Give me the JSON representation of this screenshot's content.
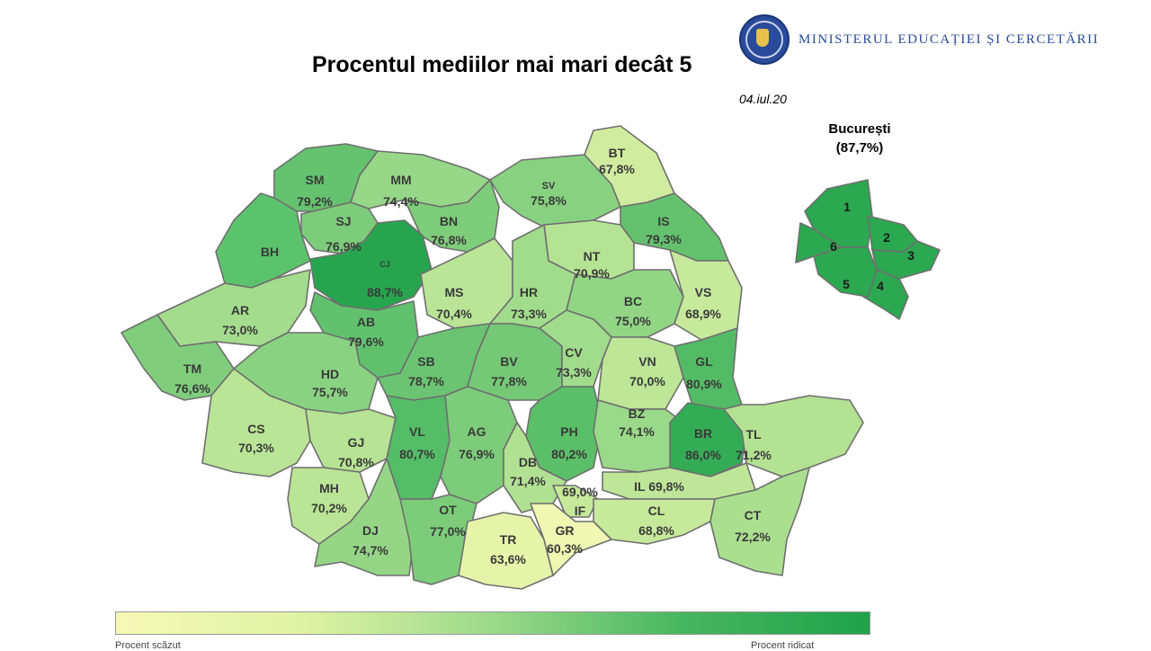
{
  "header": {
    "title": "Procentul mediilor mai mari decât 5",
    "date": "04.iul.20",
    "ministry": "Ministerul Educației și Cercetării",
    "seal_name": "ministry-seal-logo"
  },
  "bucuresti": {
    "name": "București",
    "value_label": "(87,7%)",
    "value": 87.7,
    "sectors": [
      "1",
      "2",
      "3",
      "4",
      "5",
      "6"
    ]
  },
  "legend": {
    "colors": [
      "#f5f9b7",
      "#1fa24a"
    ],
    "left_text": "Procent scăzut",
    "right_text": "Procent ridicat"
  },
  "counties": [
    {
      "code": "SM",
      "value": "79,2%"
    },
    {
      "code": "MM",
      "value": "74,4%"
    },
    {
      "code": "SV",
      "value": "75,8%"
    },
    {
      "code": "BT",
      "value": "67,8%"
    },
    {
      "code": "SJ",
      "value": "76,9%"
    },
    {
      "code": "BN",
      "value": "76,8%"
    },
    {
      "code": "IS",
      "value": "79,3%"
    },
    {
      "code": "BH",
      "value": ""
    },
    {
      "code": "CJ",
      "value": "88,7%"
    },
    {
      "code": "NT",
      "value": "70,9%"
    },
    {
      "code": "MS",
      "value": "70,4%"
    },
    {
      "code": "HR",
      "value": "73,3%"
    },
    {
      "code": "BC",
      "value": "75,0%"
    },
    {
      "code": "VS",
      "value": "68,9%"
    },
    {
      "code": "AR",
      "value": "73,0%"
    },
    {
      "code": "AB",
      "value": "79,6%"
    },
    {
      "code": "TM",
      "value": "76,6%"
    },
    {
      "code": "HD",
      "value": "75,7%"
    },
    {
      "code": "SB",
      "value": "78,7%"
    },
    {
      "code": "BV",
      "value": "77,8%"
    },
    {
      "code": "CV",
      "value": "73,3%"
    },
    {
      "code": "VN",
      "value": "70,0%"
    },
    {
      "code": "GL",
      "value": "80,9%"
    },
    {
      "code": "CS",
      "value": "70,3%"
    },
    {
      "code": "GJ",
      "value": "70,8%"
    },
    {
      "code": "VL",
      "value": "80,7%"
    },
    {
      "code": "AG",
      "value": "76,9%"
    },
    {
      "code": "PH",
      "value": "80,2%"
    },
    {
      "code": "BZ",
      "value": "74,1%"
    },
    {
      "code": "BR",
      "value": "86,0%"
    },
    {
      "code": "TL",
      "value": "71,2%"
    },
    {
      "code": "DB",
      "value": "71,4%"
    },
    {
      "code": "MH",
      "value": "70,2%"
    },
    {
      "code": "IF",
      "value": "69,0%"
    },
    {
      "code": "IL",
      "value": "69,8%"
    },
    {
      "code": "DJ",
      "value": "74,7%"
    },
    {
      "code": "OT",
      "value": "77,0%"
    },
    {
      "code": "TR",
      "value": "63,6%"
    },
    {
      "code": "GR",
      "value": "60,3%"
    },
    {
      "code": "CL",
      "value": "68,8%"
    },
    {
      "code": "CT",
      "value": "72,2%"
    }
  ]
}
